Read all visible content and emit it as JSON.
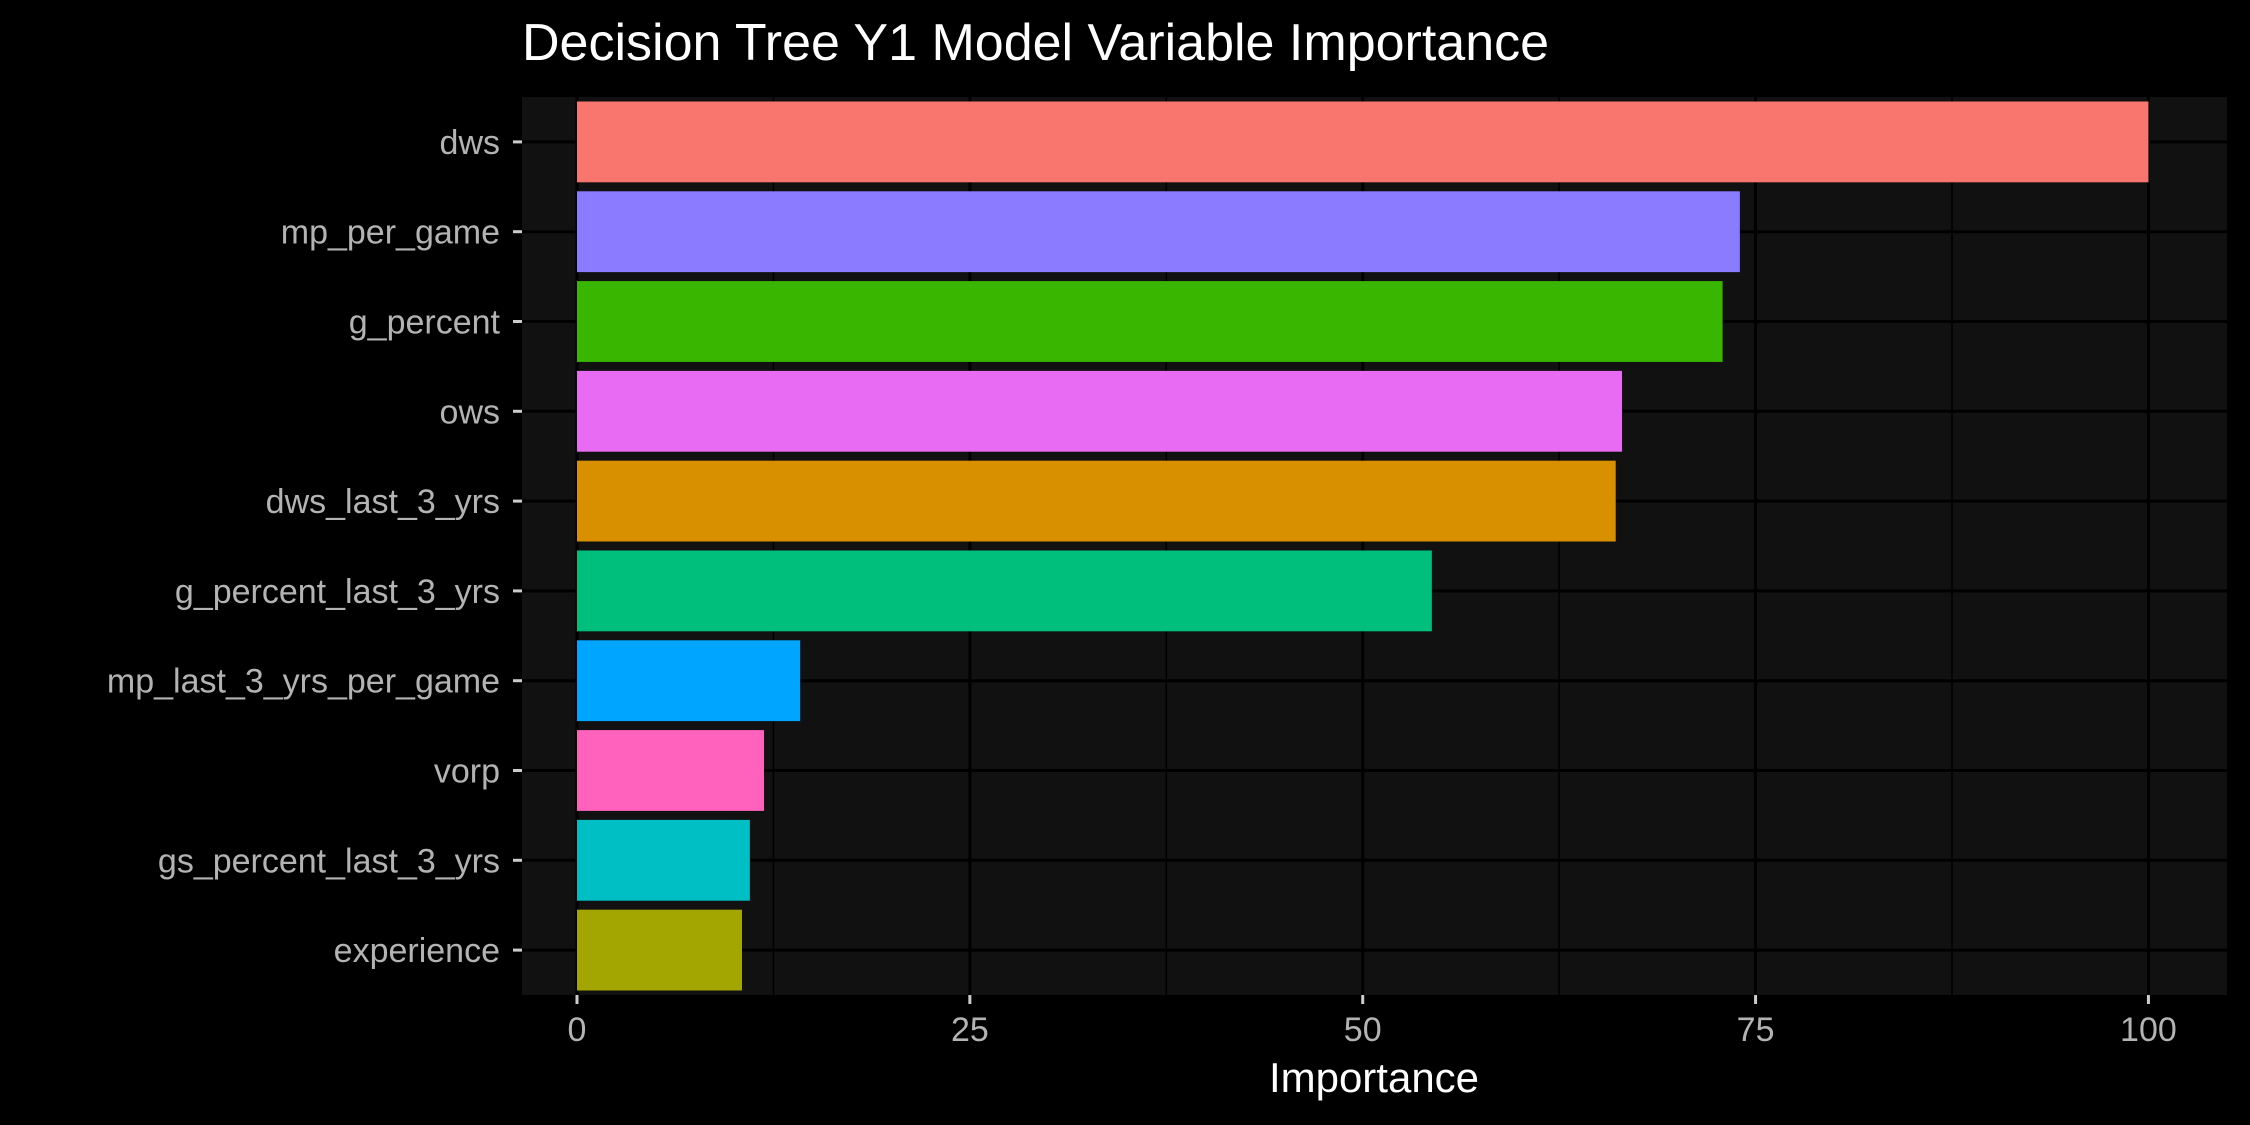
{
  "chart_data": {
    "type": "bar",
    "orientation": "horizontal",
    "title": "Decision Tree Y1 Model Variable Importance",
    "xlabel": "Importance",
    "ylabel": "",
    "xlim": [
      -3.5,
      105
    ],
    "x_ticks": [
      0,
      25,
      50,
      75,
      100
    ],
    "x_tick_labels": [
      "0",
      "25",
      "50",
      "75",
      "100"
    ],
    "grid": true,
    "legend": "none",
    "bars": [
      {
        "category": "dws",
        "value": 100,
        "color": "#F8766D"
      },
      {
        "category": "mp_per_game",
        "value": 74.0,
        "color": "#8B7BFF"
      },
      {
        "category": "g_percent",
        "value": 72.9,
        "color": "#39B600"
      },
      {
        "category": "ows",
        "value": 66.5,
        "color": "#E76BF3"
      },
      {
        "category": "dws_last_3_yrs",
        "value": 66.1,
        "color": "#D89000"
      },
      {
        "category": "g_percent_last_3_yrs",
        "value": 54.4,
        "color": "#00BF7D"
      },
      {
        "category": "mp_last_3_yrs_per_game",
        "value": 14.2,
        "color": "#00A5FF"
      },
      {
        "category": "vorp",
        "value": 11.9,
        "color": "#FF62BC"
      },
      {
        "category": "gs_percent_last_3_yrs",
        "value": 11.0,
        "color": "#00BFC4"
      },
      {
        "category": "experience",
        "value": 10.5,
        "color": "#A3A500"
      }
    ]
  }
}
